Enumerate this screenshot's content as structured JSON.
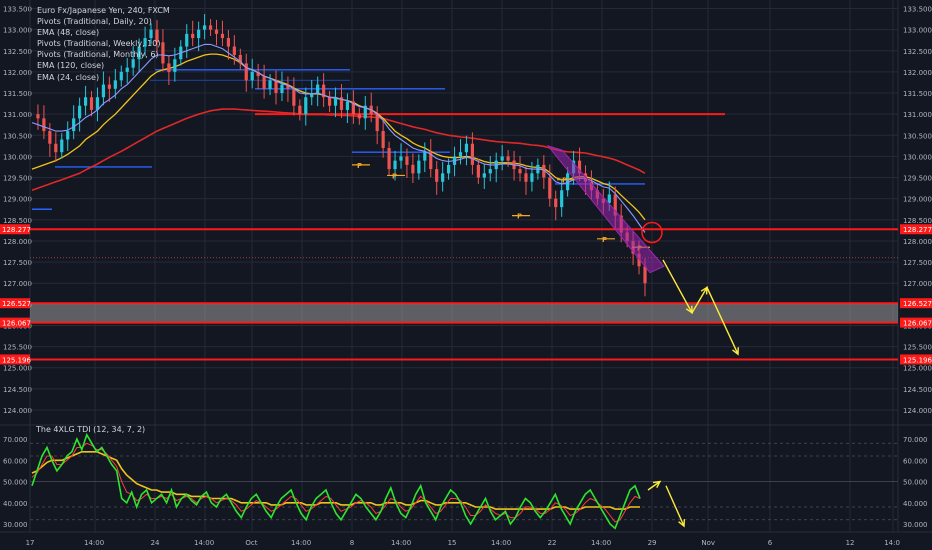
{
  "header": {
    "symbol": "Euro Fx/Japanese Yen, 240, FXCM",
    "indicators": [
      "Pivots (Traditional, Daily, 20)",
      "EMA (48, close)",
      "Pivots (Traditional, Weekly, 10)",
      "Pivots (Traditional, Monthly, 6)",
      "EMA (120, close)",
      "EMA (24, close)"
    ]
  },
  "colors": {
    "background": "#131722",
    "grid": "#242a38",
    "up_candle": "#26c6da",
    "down_candle": "#ef5350",
    "ema24": "#8e99ff",
    "ema48": "#f0c419",
    "ema120": "#e02828",
    "pivot_daily": "#f5a623",
    "pivot_weekly": "#2962ff",
    "level_line": "#ff1a1a",
    "zone_fill": "#9a9a9a",
    "channel": "#9c27b0",
    "projection": "#ffeb3b",
    "tdi_green": "#2ee52e",
    "tdi_red": "#ff3b3b",
    "tdi_yellow": "#f0c419"
  },
  "chart_data": [
    {
      "type": "line",
      "title": "Euro Fx/Japanese Yen, 240, FXCM",
      "price_axis_ticks": [
        "133.500",
        "133.000",
        "132.500",
        "132.000",
        "131.500",
        "131.000",
        "130.500",
        "130.000",
        "129.500",
        "129.000",
        "128.500",
        "128.000",
        "127.500",
        "127.000",
        "126.500",
        "126.000",
        "125.500",
        "125.000",
        "124.500",
        "124.000"
      ],
      "time_axis_ticks": [
        "17",
        "14:00",
        "24",
        "14:00",
        "Oct",
        "14:00",
        "8",
        "14:00",
        "15",
        "14:00",
        "22",
        "14:00",
        "29",
        "Nov",
        "6",
        "12",
        "14:0"
      ],
      "ylim": [
        123.6,
        133.8
      ],
      "horizontal_levels": [
        {
          "label": "128.277",
          "value": 128.277
        },
        {
          "label": "126.527",
          "value": 126.527
        },
        {
          "label": "126.067",
          "value": 126.067
        },
        {
          "label": "125.196",
          "value": 125.196
        }
      ],
      "resistance_line": 131.0,
      "support_zone": [
        126.067,
        126.527
      ],
      "price_path_x": [
        0,
        2,
        4,
        6,
        8,
        10,
        12,
        14,
        16,
        18,
        20,
        22,
        24,
        26,
        28,
        30,
        32,
        34,
        36,
        38,
        40,
        42,
        44,
        46,
        48,
        50,
        52,
        54,
        56,
        58,
        60,
        62,
        64,
        66,
        68,
        70,
        72,
        74,
        76,
        78,
        80,
        82,
        84,
        86,
        88,
        90,
        92,
        94,
        96,
        98,
        100,
        102,
        104,
        106,
        108,
        110,
        112,
        114,
        116,
        118,
        120,
        122,
        124,
        126,
        128,
        130,
        132,
        134,
        136,
        138,
        140,
        142,
        144,
        146,
        148,
        150,
        152,
        154,
        156,
        158,
        160,
        162,
        164,
        166,
        168,
        170,
        172,
        174,
        176,
        178,
        180,
        182,
        184,
        186,
        188,
        190,
        192,
        194,
        196,
        198,
        200,
        202,
        204,
        206
      ],
      "close": [
        131.0,
        130.9,
        130.6,
        130.3,
        130.1,
        130.4,
        130.6,
        130.9,
        131.2,
        131.4,
        131.1,
        131.4,
        131.7,
        131.6,
        131.8,
        132.0,
        132.1,
        132.3,
        132.6,
        132.8,
        133.0,
        132.7,
        132.2,
        132.0,
        132.3,
        132.6,
        132.9,
        132.8,
        133.0,
        133.1,
        133.0,
        132.9,
        132.8,
        132.6,
        132.4,
        132.2,
        131.8,
        132.0,
        131.9,
        131.6,
        131.8,
        131.5,
        131.7,
        131.6,
        131.2,
        131.0,
        131.4,
        131.5,
        131.7,
        131.4,
        131.2,
        131.4,
        131.1,
        131.3,
        131.0,
        130.9,
        131.2,
        131.0,
        130.6,
        130.2,
        129.7,
        129.9,
        130.0,
        129.8,
        129.6,
        129.9,
        130.1,
        129.7,
        129.4,
        129.6,
        129.8,
        130.0,
        130.1,
        130.3,
        129.8,
        129.5,
        129.6,
        129.7,
        129.9,
        130.0,
        129.9,
        129.7,
        129.6,
        129.4,
        129.6,
        129.8,
        129.5,
        129.0,
        128.8,
        129.2,
        129.6,
        129.9,
        129.6,
        129.4,
        129.2,
        129.0,
        128.9,
        129.1,
        128.6,
        128.2,
        128.0,
        127.7,
        127.4,
        127.0
      ],
      "ema24": [
        130.8,
        130.75,
        130.7,
        130.65,
        130.6,
        130.6,
        130.62,
        130.7,
        130.8,
        130.92,
        131.0,
        131.1,
        131.25,
        131.35,
        131.45,
        131.6,
        131.7,
        131.85,
        132.0,
        132.15,
        132.3,
        132.4,
        132.4,
        132.38,
        132.4,
        132.45,
        132.5,
        132.55,
        132.6,
        132.65,
        132.65,
        132.6,
        132.55,
        132.45,
        132.35,
        132.25,
        132.1,
        132.05,
        131.98,
        131.9,
        131.85,
        131.78,
        131.72,
        131.68,
        131.6,
        131.5,
        131.48,
        131.48,
        131.5,
        131.45,
        131.4,
        131.4,
        131.35,
        131.32,
        131.25,
        131.18,
        131.15,
        131.1,
        131.0,
        130.85,
        130.65,
        130.5,
        130.4,
        130.3,
        130.2,
        130.15,
        130.12,
        130.05,
        129.95,
        129.9,
        129.88,
        129.9,
        129.93,
        129.98,
        129.95,
        129.88,
        129.82,
        129.8,
        129.8,
        129.82,
        129.82,
        129.8,
        129.78,
        129.72,
        129.7,
        129.7,
        129.68,
        129.55,
        129.4,
        129.35,
        129.38,
        129.45,
        129.48,
        129.48,
        129.43,
        129.35,
        129.28,
        129.25,
        129.12,
        128.95,
        128.78,
        128.6,
        128.4,
        128.2
      ],
      "ema48": [
        129.7,
        129.75,
        129.8,
        129.85,
        129.9,
        129.97,
        130.05,
        130.15,
        130.25,
        130.4,
        130.5,
        130.6,
        130.75,
        130.88,
        131.0,
        131.15,
        131.3,
        131.45,
        131.6,
        131.75,
        131.9,
        132.0,
        132.05,
        132.08,
        132.12,
        132.18,
        132.25,
        132.3,
        132.35,
        132.4,
        132.42,
        132.42,
        132.4,
        132.35,
        132.3,
        132.22,
        132.1,
        132.05,
        131.98,
        131.9,
        131.85,
        131.8,
        131.75,
        131.7,
        131.62,
        131.55,
        131.5,
        131.48,
        131.48,
        131.45,
        131.4,
        131.38,
        131.35,
        131.32,
        131.28,
        131.2,
        131.15,
        131.1,
        131.02,
        130.9,
        130.75,
        130.6,
        130.5,
        130.42,
        130.32,
        130.25,
        130.2,
        130.12,
        130.05,
        130.0,
        129.98,
        129.97,
        129.98,
        130.0,
        129.98,
        129.93,
        129.88,
        129.85,
        129.85,
        129.85,
        129.85,
        129.84,
        129.82,
        129.78,
        129.75,
        129.74,
        129.72,
        129.62,
        129.5,
        129.45,
        129.45,
        129.5,
        129.52,
        129.52,
        129.48,
        129.42,
        129.36,
        129.32,
        129.22,
        129.08,
        128.95,
        128.82,
        128.68,
        128.5
      ],
      "ema120": [
        129.2,
        129.25,
        129.3,
        129.35,
        129.4,
        129.45,
        129.5,
        129.55,
        129.6,
        129.68,
        129.75,
        129.82,
        129.9,
        129.98,
        130.05,
        130.12,
        130.2,
        130.28,
        130.36,
        130.44,
        130.52,
        130.6,
        130.66,
        130.72,
        130.78,
        130.84,
        130.9,
        130.95,
        131.0,
        131.04,
        131.08,
        131.1,
        131.12,
        131.12,
        131.12,
        131.11,
        131.1,
        131.09,
        131.08,
        131.07,
        131.06,
        131.05,
        131.04,
        131.03,
        131.02,
        131.0,
        130.99,
        130.99,
        130.99,
        130.99,
        130.98,
        130.98,
        130.97,
        130.97,
        130.96,
        130.95,
        130.94,
        130.93,
        130.92,
        130.9,
        130.86,
        130.82,
        130.78,
        130.74,
        130.7,
        130.67,
        130.64,
        130.6,
        130.56,
        130.53,
        130.5,
        130.48,
        130.46,
        130.45,
        130.43,
        130.41,
        130.39,
        130.37,
        130.35,
        130.34,
        130.33,
        130.32,
        130.31,
        130.29,
        130.27,
        130.26,
        130.24,
        130.2,
        130.16,
        130.13,
        130.11,
        130.1,
        130.09,
        130.08,
        130.05,
        130.02,
        129.99,
        129.96,
        129.92,
        129.86,
        129.8,
        129.74,
        129.68,
        129.6
      ]
    },
    {
      "type": "line",
      "title": "The 4XLG TDI (12, 34, 7, 2)",
      "axis_ticks": [
        "70.000",
        "60.000",
        "50.000",
        "40.000",
        "30.000"
      ],
      "ylim": [
        28,
        76
      ],
      "green_series": [
        48,
        55,
        62,
        66,
        60,
        55,
        58,
        62,
        64,
        70,
        65,
        72,
        68,
        64,
        66,
        62,
        58,
        55,
        42,
        40,
        45,
        38,
        44,
        46,
        40,
        42,
        44,
        40,
        46,
        38,
        42,
        44,
        41,
        39,
        43,
        45,
        40,
        38,
        42,
        44,
        40,
        36,
        33,
        38,
        42,
        44,
        40,
        36,
        33,
        38,
        42,
        44,
        46,
        40,
        35,
        32,
        38,
        42,
        44,
        46,
        40,
        35,
        32,
        36,
        40,
        44,
        42,
        38,
        35,
        32,
        36,
        42,
        47,
        40,
        35,
        33,
        38,
        44,
        48,
        40,
        36,
        32,
        38,
        42,
        46,
        44,
        40,
        34,
        30,
        34,
        38,
        42,
        36,
        32,
        34,
        36,
        30,
        33,
        38,
        42,
        40,
        36,
        33,
        36,
        40,
        44,
        38,
        34,
        30,
        36,
        40,
        44,
        46,
        42,
        38,
        34,
        30,
        28,
        34,
        40,
        46,
        48,
        42
      ],
      "red_series": [
        52,
        54,
        58,
        62,
        62,
        58,
        58,
        60,
        62,
        66,
        66,
        68,
        67,
        65,
        65,
        63,
        60,
        57,
        50,
        45,
        44,
        41,
        42,
        44,
        42,
        42,
        43,
        42,
        44,
        41,
        42,
        43,
        42,
        40,
        42,
        43,
        42,
        40,
        41,
        42,
        41,
        39,
        36,
        37,
        39,
        41,
        40,
        38,
        36,
        37,
        39,
        41,
        43,
        42,
        39,
        36,
        37,
        39,
        41,
        43,
        42,
        39,
        36,
        37,
        38,
        40,
        41,
        40,
        38,
        35,
        36,
        39,
        42,
        41,
        38,
        36,
        37,
        40,
        43,
        41,
        38,
        35,
        36,
        39,
        42,
        42,
        41,
        38,
        34,
        34,
        36,
        39,
        37,
        35,
        34,
        35,
        33,
        33,
        35,
        38,
        38,
        37,
        35,
        35,
        37,
        40,
        39,
        37,
        34,
        35,
        37,
        40,
        42,
        41,
        39,
        37,
        34,
        31,
        32,
        36,
        40,
        43,
        42
      ],
      "yellow_series": [
        54,
        55,
        57,
        59,
        60,
        60,
        60,
        61,
        62,
        63,
        64,
        64,
        64,
        64,
        63,
        62,
        61,
        60,
        56,
        53,
        51,
        49,
        48,
        47,
        46,
        46,
        45,
        45,
        45,
        44,
        44,
        44,
        43,
        43,
        43,
        43,
        42,
        42,
        42,
        42,
        42,
        41,
        40,
        40,
        40,
        40,
        40,
        40,
        39,
        39,
        39,
        40,
        40,
        40,
        40,
        39,
        39,
        39,
        40,
        40,
        40,
        40,
        39,
        39,
        39,
        40,
        40,
        40,
        40,
        39,
        39,
        40,
        40,
        40,
        40,
        39,
        39,
        40,
        41,
        41,
        40,
        39,
        39,
        40,
        40,
        40,
        40,
        40,
        39,
        38,
        38,
        38,
        38,
        37,
        37,
        37,
        37,
        37,
        37,
        37,
        37,
        37,
        37,
        37,
        37,
        38,
        38,
        38,
        37,
        37,
        37,
        38,
        38,
        38,
        38,
        38,
        38,
        37,
        37,
        37,
        38,
        38,
        38
      ]
    }
  ]
}
